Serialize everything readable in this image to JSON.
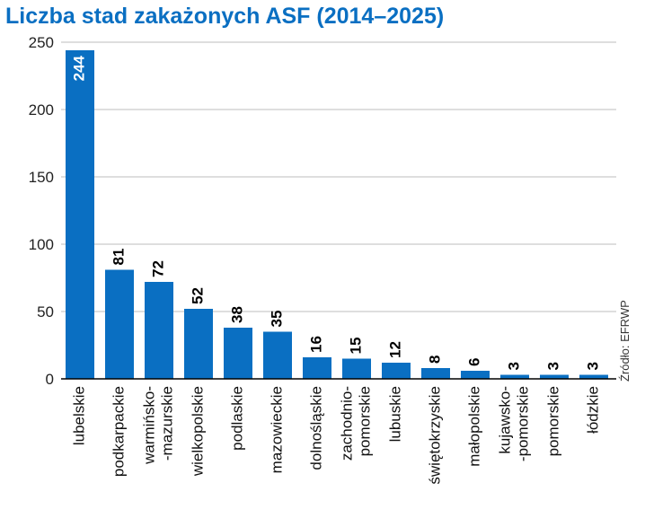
{
  "chart_data": {
    "type": "bar",
    "title": "Liczba stad zakażonych ASF (2014–2025)",
    "categories": [
      [
        "lubelskie"
      ],
      [
        "podkarpackie"
      ],
      [
        "warmińsko-",
        "-mazurskie"
      ],
      [
        "wielkopolskie"
      ],
      [
        "podlaskie"
      ],
      [
        "mazowieckie"
      ],
      [
        "dolnośląskie"
      ],
      [
        "zachodnio-",
        "pomorskie"
      ],
      [
        "lubuskie"
      ],
      [
        "świętokrzyskie"
      ],
      [
        "małopolskie"
      ],
      [
        "kujawsko-",
        "-pomorskie"
      ],
      [
        "pomorskie"
      ],
      [
        "łódzkie"
      ]
    ],
    "values": [
      244,
      81,
      72,
      52,
      38,
      35,
      16,
      15,
      12,
      8,
      6,
      3,
      3,
      3
    ],
    "ylim": [
      0,
      250
    ],
    "yticks": [
      0,
      50,
      100,
      150,
      200,
      250
    ],
    "grid": true,
    "bar_color": "#0a6fc2",
    "source": "Źródło: EFRWP"
  }
}
